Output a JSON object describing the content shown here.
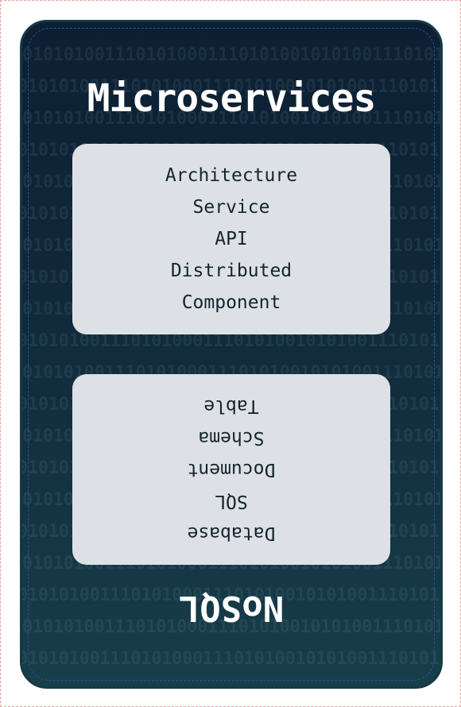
{
  "card": {
    "title": "Microservices",
    "footer_title": "NoSQL",
    "background_pattern": "0101010011101010001110101001010100111010100011101010010101001110101000111010100101010011101010001110101001010100111010100011101010010101"
  },
  "top_words": [
    "Architecture",
    "Service",
    "API",
    "Distributed",
    "Component"
  ],
  "bottom_words": [
    "Database",
    "SQL",
    "Document",
    "Schema",
    "Table"
  ],
  "colors": {
    "card_top": "#0d1f33",
    "card_bottom": "#183e4a",
    "box": "#dde1e5",
    "text": "#14252e"
  }
}
